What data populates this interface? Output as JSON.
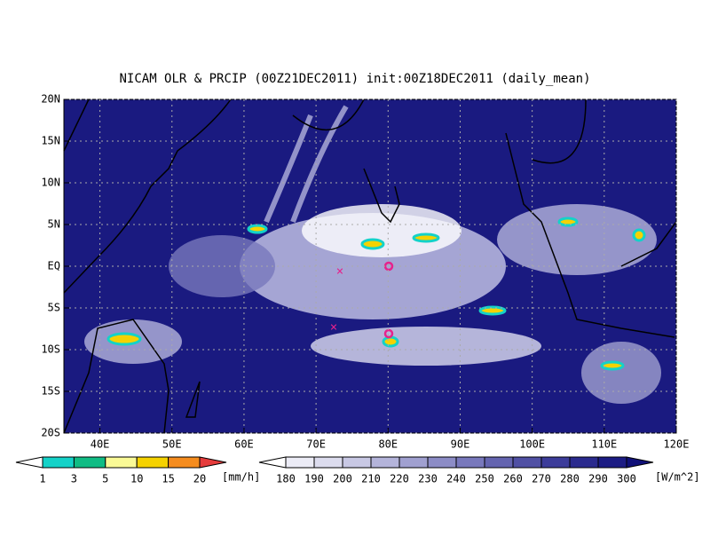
{
  "title": "NICAM OLR & PRCIP (00Z21DEC2011) init:00Z18DEC2011 (daily_mean)",
  "map": {
    "xlim": [
      35,
      120
    ],
    "ylim": [
      -20,
      20
    ],
    "xticks": [
      {
        "value": 40,
        "label": "40E"
      },
      {
        "value": 50,
        "label": "50E"
      },
      {
        "value": 60,
        "label": "60E"
      },
      {
        "value": 70,
        "label": "70E"
      },
      {
        "value": 80,
        "label": "80E"
      },
      {
        "value": 90,
        "label": "90E"
      },
      {
        "value": 100,
        "label": "100E"
      },
      {
        "value": 110,
        "label": "110E"
      },
      {
        "value": 120,
        "label": "120E"
      }
    ],
    "yticks": [
      {
        "value": -20,
        "label": "20S"
      },
      {
        "value": -15,
        "label": "15S"
      },
      {
        "value": -10,
        "label": "10S"
      },
      {
        "value": -5,
        "label": "5S"
      },
      {
        "value": 0,
        "label": "EQ"
      },
      {
        "value": 5,
        "label": "5N"
      },
      {
        "value": 10,
        "label": "10N"
      },
      {
        "value": 15,
        "label": "15N"
      },
      {
        "value": 20,
        "label": "20N"
      }
    ],
    "grid": true
  },
  "precip_scale": {
    "levels": [
      1,
      3,
      5,
      10,
      15,
      20
    ],
    "colors": [
      "#ffffff",
      "#14d2c8",
      "#10bc84",
      "#fafa96",
      "#f5d200",
      "#f58c1e",
      "#e63c3c"
    ],
    "unit": "[mm/h]"
  },
  "olr_scale": {
    "levels": [
      180,
      190,
      200,
      210,
      220,
      230,
      240,
      250,
      260,
      270,
      280,
      290,
      300
    ],
    "colors": [
      "#ffffff",
      "#ececf6",
      "#dcdcee",
      "#c8c8e4",
      "#b4b4da",
      "#a0a0d0",
      "#8c8cc6",
      "#7878bc",
      "#6464b0",
      "#5050a4",
      "#3c3c9a",
      "#2a2a8e",
      "#1c1c84",
      "#101078"
    ],
    "unit": "[W/m^2]"
  }
}
